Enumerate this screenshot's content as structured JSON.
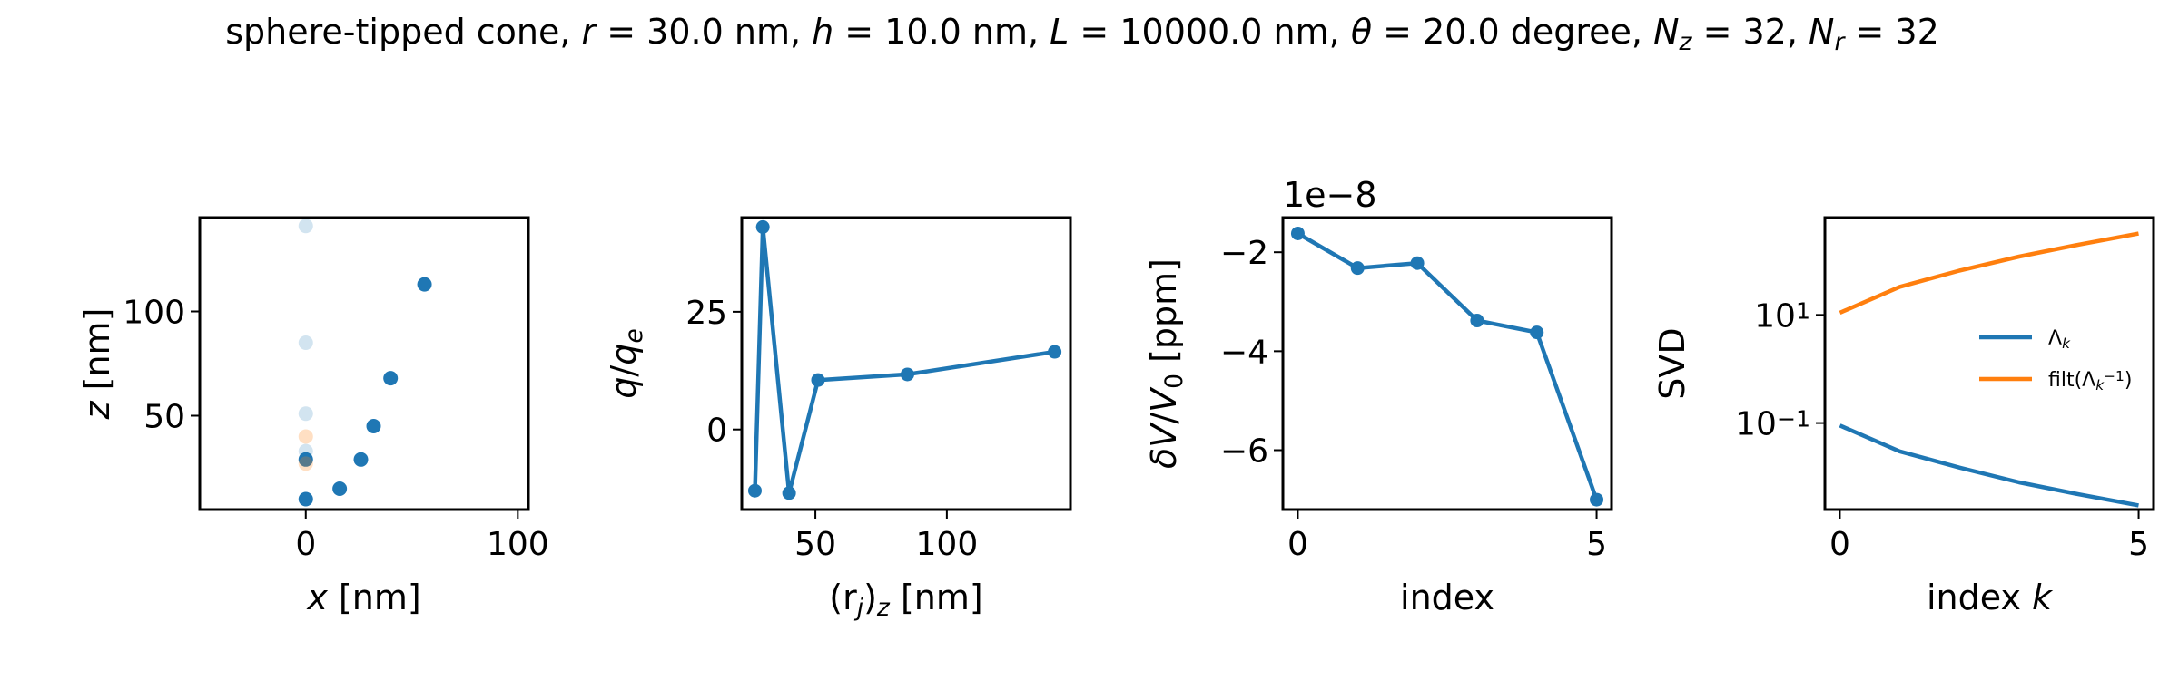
{
  "figure": {
    "title": "sphere-tipped cone, r = 30.0 nm, h = 10.0 nm, L = 10000.0 nm, θ = 20.0 degree, N_z = 32, N_r = 32",
    "title_parts": [
      {
        "t": "sphere-tipped cone, "
      },
      {
        "t": "r",
        "i": true
      },
      {
        "t": " = 30.0 nm, "
      },
      {
        "t": "h",
        "i": true
      },
      {
        "t": " = 10.0 nm, "
      },
      {
        "t": "L",
        "i": true
      },
      {
        "t": " = 10000.0 nm, "
      },
      {
        "t": "θ",
        "i": true
      },
      {
        "t": " = 20.0 degree, "
      },
      {
        "t": "N",
        "i": true
      },
      {
        "t": "z",
        "i": true,
        "sub": true
      },
      {
        "t": " = 32, "
      },
      {
        "t": "N",
        "i": true
      },
      {
        "t": "r",
        "i": true,
        "sub": true
      },
      {
        "t": " = 32"
      }
    ]
  },
  "colors": {
    "blue": "#1f77b4",
    "orange": "#ff7f0e"
  },
  "chart_data": [
    {
      "type": "scatter",
      "xlabel": "x [nm]",
      "xlabel_parts": [
        {
          "t": "x",
          "i": true
        },
        {
          "t": " [nm]"
        }
      ],
      "ylabel": "z [nm]",
      "ylabel_parts": [
        {
          "t": "z",
          "i": true
        },
        {
          "t": " [nm]"
        }
      ],
      "xlim": [
        -50,
        105
      ],
      "ylim": [
        5,
        145
      ],
      "xticks": [
        0,
        100
      ],
      "xtick_labels": [
        "0",
        "100"
      ],
      "yticks": [
        50,
        100
      ],
      "ytick_labels": [
        "50",
        "100"
      ],
      "series": [
        {
          "color": "#1f77b4",
          "opacity": 1,
          "x": [
            0,
            16,
            26,
            32,
            40,
            56,
            0
          ],
          "y": [
            10,
            15,
            29,
            45,
            68,
            113,
            29
          ]
        },
        {
          "color": "#1f77b4",
          "opacity": 0.2,
          "x": [
            0,
            0,
            0,
            0
          ],
          "y": [
            141,
            85,
            51,
            33
          ]
        },
        {
          "color": "#ff7f0e",
          "opacity": 0.25,
          "x": [
            0,
            0
          ],
          "y": [
            40,
            27
          ]
        }
      ]
    },
    {
      "type": "line",
      "xlabel": "(r_j)_z [nm]",
      "xlabel_parts": [
        {
          "t": "(r"
        },
        {
          "t": "j",
          "i": true,
          "sub": true
        },
        {
          "t": ")"
        },
        {
          "t": "z",
          "i": true,
          "sub": true
        },
        {
          "t": " [nm]"
        }
      ],
      "ylabel": "q/q_e",
      "ylabel_parts": [
        {
          "t": "q",
          "i": true
        },
        {
          "t": "/"
        },
        {
          "t": "q",
          "i": true
        },
        {
          "t": "e",
          "i": true,
          "sub": true
        }
      ],
      "xlim": [
        22,
        147
      ],
      "ylim": [
        -17,
        45
      ],
      "xticks": [
        50,
        100
      ],
      "xtick_labels": [
        "50",
        "100"
      ],
      "yticks": [
        0,
        25
      ],
      "ytick_labels": [
        "0",
        "25"
      ],
      "series": [
        {
          "color": "#1f77b4",
          "x": [
            27,
            30,
            40,
            51,
            85,
            141
          ],
          "y": [
            -13,
            43,
            -13.5,
            10.5,
            11.7,
            16.5
          ]
        }
      ]
    },
    {
      "type": "line",
      "xlabel": "index",
      "xlabel_parts": [
        {
          "t": "index"
        }
      ],
      "ylabel": "δV/V_0 [ppm]",
      "ylabel_parts": [
        {
          "t": "δV",
          "i": true
        },
        {
          "t": "/"
        },
        {
          "t": "V",
          "i": true
        },
        {
          "t": "0",
          "sub": true
        },
        {
          "t": " [ppm]"
        }
      ],
      "offset_text": "1e−8",
      "xlim": [
        -0.25,
        5.25
      ],
      "ylim": [
        -7.2,
        -1.3
      ],
      "xticks": [
        0,
        5
      ],
      "xtick_labels": [
        "0",
        "5"
      ],
      "yticks": [
        -6,
        -4,
        -2
      ],
      "ytick_labels": [
        "−6",
        "−4",
        "−2"
      ],
      "series": [
        {
          "color": "#1f77b4",
          "x": [
            0,
            1,
            2,
            3,
            4,
            5
          ],
          "y": [
            -1.62,
            -2.32,
            -2.22,
            -3.38,
            -3.62,
            -7.0
          ]
        }
      ]
    },
    {
      "type": "line",
      "scale_y": "log",
      "xlabel": "index k",
      "xlabel_parts": [
        {
          "t": "index "
        },
        {
          "t": "k",
          "i": true
        }
      ],
      "ylabel": "SVD",
      "ylabel_parts": [
        {
          "t": "SVD"
        }
      ],
      "xlim": [
        -0.25,
        5.25
      ],
      "ylim_log10": [
        -2.6,
        2.8
      ],
      "xticks": [
        0,
        5
      ],
      "xtick_labels": [
        "0",
        "5"
      ],
      "yticks": [
        0.1,
        10
      ],
      "ytick_labels": [
        [
          {
            "t": "10"
          },
          {
            "t": "−1",
            "sup": true
          }
        ],
        [
          {
            "t": "10"
          },
          {
            "t": "1",
            "sup": true
          }
        ]
      ],
      "legend": {
        "position": "center-right",
        "items": [
          {
            "label": "Λ_k",
            "label_parts": [
              {
                "t": "Λ"
              },
              {
                "t": "k",
                "i": true,
                "sub": true
              }
            ],
            "color": "#1f77b4"
          },
          {
            "label": "filt(Λ_k^−1)",
            "label_parts": [
              {
                "t": "filt(Λ"
              },
              {
                "t": "k",
                "i": true,
                "sub": true
              },
              {
                "t": "−1",
                "sup": true
              },
              {
                "t": ")"
              }
            ],
            "color": "#ff7f0e"
          }
        ]
      },
      "series": [
        {
          "name": "Λ_k",
          "color": "#1f77b4",
          "x": [
            0,
            1,
            2,
            3,
            4,
            5
          ],
          "y": [
            0.09,
            0.03,
            0.015,
            0.008,
            0.0048,
            0.003
          ]
        },
        {
          "name": "filt(Λ_k^−1)",
          "color": "#ff7f0e",
          "x": [
            0,
            1,
            2,
            3,
            4,
            5
          ],
          "y": [
            11,
            33,
            66,
            120,
            200,
            320
          ]
        }
      ]
    }
  ]
}
